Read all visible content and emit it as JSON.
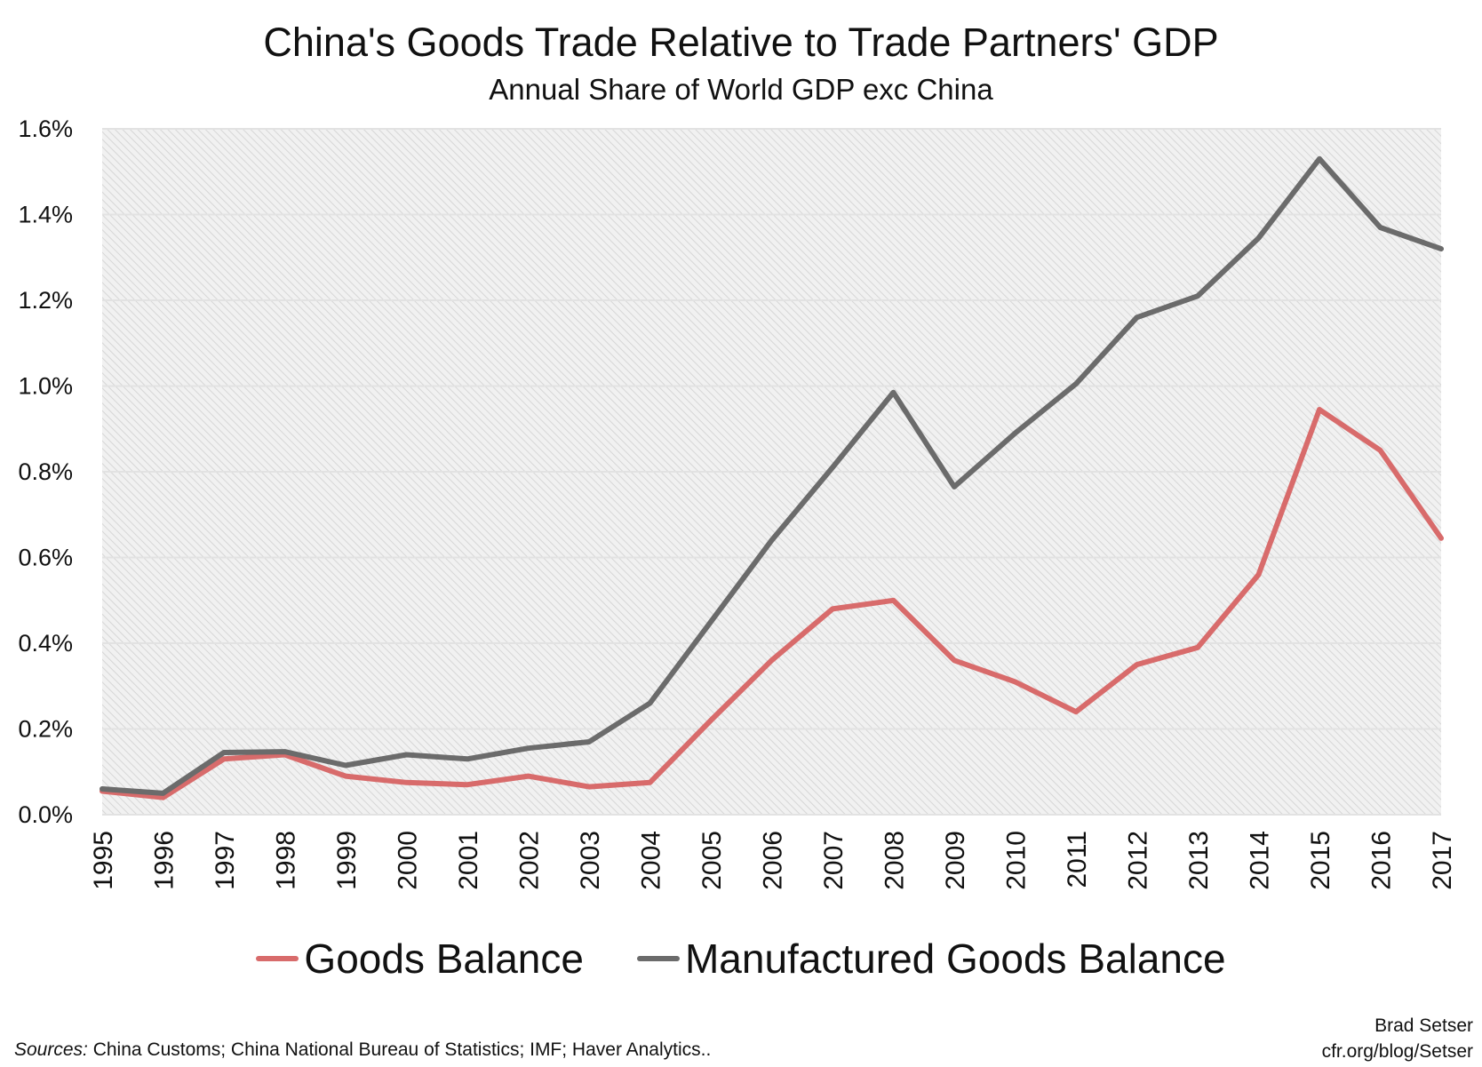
{
  "chart_data": {
    "type": "line",
    "title": "China's Goods Trade Relative to Trade Partners' GDP",
    "subtitle": "Annual Share of World GDP exc China",
    "xlabel": "",
    "ylabel": "",
    "x": [
      "1995",
      "1996",
      "1997",
      "1998",
      "1999",
      "2000",
      "2001",
      "2002",
      "2003",
      "2004",
      "2005",
      "2006",
      "2007",
      "2008",
      "2009",
      "2010",
      "2011",
      "2012",
      "2013",
      "2014",
      "2015",
      "2016",
      "2017"
    ],
    "ylim": [
      0,
      1.6
    ],
    "yticks": [
      "0.0%",
      "0.2%",
      "0.4%",
      "0.6%",
      "0.8%",
      "1.0%",
      "1.2%",
      "1.4%",
      "1.6%"
    ],
    "grid": true,
    "legend_position": "bottom",
    "series": [
      {
        "name": "Goods Balance",
        "color": "#d86b6b",
        "values": [
          0.055,
          0.04,
          0.13,
          0.14,
          0.09,
          0.075,
          0.07,
          0.09,
          0.065,
          0.075,
          0.22,
          0.36,
          0.48,
          0.5,
          0.36,
          0.31,
          0.24,
          0.35,
          0.39,
          0.56,
          0.945,
          0.85,
          0.645
        ]
      },
      {
        "name": "Manufactured Goods Balance",
        "color": "#6b6b6b",
        "values": [
          0.06,
          0.05,
          0.145,
          0.147,
          0.115,
          0.14,
          0.13,
          0.155,
          0.17,
          0.26,
          0.45,
          0.64,
          0.81,
          0.985,
          0.765,
          0.89,
          1.005,
          1.16,
          1.21,
          1.345,
          1.53,
          1.37,
          1.32
        ]
      }
    ]
  },
  "footer": {
    "sources_label": "Sources:",
    "sources_text": " China Customs; China National Bureau of Statistics; IMF; Haver Analytics..",
    "author": "Brad Setser",
    "url": "cfr.org/blog/Setser"
  }
}
